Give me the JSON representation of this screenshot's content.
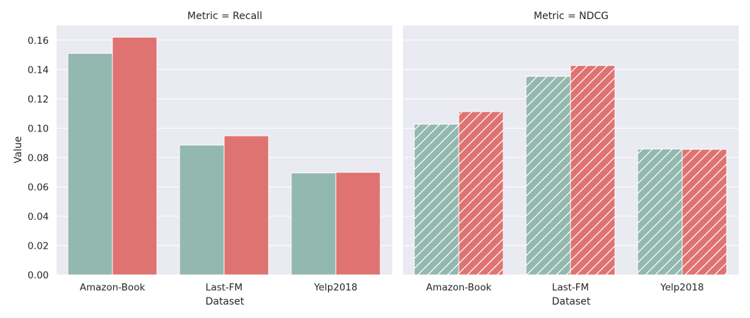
{
  "chart_data": [
    {
      "type": "bar",
      "title": "Metric = Recall",
      "xlabel": "Dataset",
      "ylabel": "Value",
      "ylim": [
        0,
        0.17
      ],
      "yticks": [
        "0.00",
        "0.02",
        "0.04",
        "0.06",
        "0.08",
        "0.10",
        "0.12",
        "0.14",
        "0.16"
      ],
      "categories": [
        "Amazon-Book",
        "Last-FM",
        "Yelp2018"
      ],
      "series": [
        {
          "values": [
            0.151,
            0.0885,
            0.0695
          ],
          "color": "#93b8af",
          "hatch": false
        },
        {
          "values": [
            0.162,
            0.0948,
            0.0699
          ],
          "color": "#df7371",
          "hatch": false
        }
      ],
      "grid": true
    },
    {
      "type": "bar",
      "title": "Metric = NDCG",
      "xlabel": "Dataset",
      "ylabel": "",
      "ylim": [
        0,
        0.17
      ],
      "categories": [
        "Amazon-Book",
        "Last-FM",
        "Yelp2018"
      ],
      "series": [
        {
          "values": [
            0.1027,
            0.1353,
            0.0858
          ],
          "color": "#93b8af",
          "hatch": true
        },
        {
          "values": [
            0.1113,
            0.1427,
            0.0856
          ],
          "color": "#df7371",
          "hatch": true
        }
      ],
      "grid": true
    }
  ],
  "style": {
    "panel_background": "#eaeaf2",
    "grid_color": "#ffffff",
    "text_color": "#262626"
  }
}
